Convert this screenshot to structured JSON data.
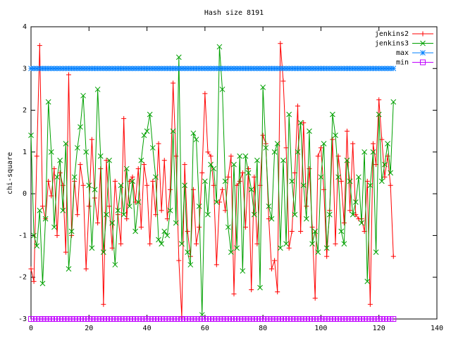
{
  "chart_data": {
    "type": "line",
    "title": "Hash size 8191",
    "y_label": "chi-square",
    "x": [
      0,
      1,
      2,
      3,
      4,
      5,
      6,
      7,
      8,
      9,
      10,
      11,
      12,
      13,
      14,
      15,
      16,
      17,
      18,
      19,
      20,
      21,
      22,
      23,
      24,
      25,
      26,
      27,
      28,
      29,
      30,
      31,
      32,
      33,
      34,
      35,
      36,
      37,
      38,
      39,
      40,
      41,
      42,
      43,
      44,
      45,
      46,
      47,
      48,
      49,
      50,
      51,
      52,
      53,
      54,
      55,
      56,
      57,
      58,
      59,
      60,
      61,
      62,
      63,
      64,
      65,
      66,
      67,
      68,
      69,
      70,
      71,
      72,
      73,
      74,
      75,
      76,
      77,
      78,
      79,
      80,
      81,
      82,
      83,
      84,
      85,
      86,
      87,
      88,
      89,
      90,
      91,
      92,
      93,
      94,
      95,
      96,
      97,
      98,
      99,
      100,
      101,
      102,
      103,
      104,
      105,
      106,
      107,
      108,
      109,
      110,
      111,
      112,
      113,
      114,
      115,
      116,
      117,
      118,
      119,
      120,
      121,
      122,
      123,
      124,
      125
    ],
    "series": [
      {
        "name": "jenkins2",
        "color": "#ff0000",
        "values": [
          -1.8,
          -2.1,
          0.9,
          3.55,
          -0.3,
          -0.6,
          0.3,
          -0.05,
          0.6,
          -1.0,
          0.5,
          0.2,
          -1.4,
          2.85,
          -1.0,
          0.3,
          -0.5,
          0.7,
          0.2,
          -1.8,
          -0.3,
          1.3,
          -0.1,
          -0.7,
          0.6,
          -2.65,
          0.8,
          -0.3,
          -1.3,
          0.3,
          -0.5,
          -1.2,
          1.8,
          -0.6,
          0.3,
          0.4,
          -0.2,
          0.6,
          -0.8,
          0.7,
          0.2,
          -1.2,
          0.3,
          -0.5,
          1.2,
          -0.4,
          0.8,
          -0.6,
          0.1,
          2.65,
          0.9,
          -1.6,
          -2.95,
          0.7,
          -0.9,
          -1.5,
          0.1,
          -1.2,
          -0.8,
          0.5,
          2.4,
          1.0,
          0.9,
          0.2,
          -1.7,
          -0.2,
          0.1,
          -0.4,
          0.4,
          0.9,
          -2.4,
          0.2,
          0.3,
          0.5,
          -0.8,
          0.6,
          -2.3,
          0.4,
          -1.2,
          0.2,
          1.4,
          1.2,
          -0.6,
          -1.8,
          -1.6,
          -2.35,
          3.6,
          2.7,
          1.1,
          -1.3,
          -0.9,
          0.5,
          2.1,
          -0.9,
          1.7,
          -0.3,
          0.6,
          -0.8,
          -2.5,
          0.9,
          1.1,
          0.1,
          -1.5,
          -0.4,
          1.3,
          -1.2,
          0.9,
          0.3,
          -0.7,
          1.5,
          -0.4,
          1.2,
          -0.5,
          -0.6,
          -0.6,
          -0.9,
          0.3,
          -2.65,
          1.2,
          0.7,
          2.25,
          1.3,
          0.4,
          0.9,
          0.2,
          -1.5
        ]
      },
      {
        "name": "jenkins3",
        "color": "#00a000",
        "values": [
          1.4,
          -1.0,
          -1.25,
          -0.4,
          -2.15,
          -0.6,
          2.2,
          1.0,
          -0.8,
          0.4,
          0.8,
          -0.4,
          1.2,
          -1.8,
          -0.9,
          0.4,
          1.1,
          1.6,
          2.35,
          1.0,
          0.2,
          -1.3,
          0.1,
          2.5,
          0.9,
          -1.4,
          -0.5,
          0.8,
          -0.7,
          -1.7,
          -0.4,
          0.2,
          -0.5,
          0.6,
          -0.3,
          0.3,
          -0.9,
          -0.2,
          0.8,
          1.4,
          1.5,
          1.9,
          1.1,
          0.4,
          -1.1,
          -1.2,
          -0.9,
          -1.0,
          -0.4,
          1.5,
          -0.7,
          3.27,
          -1.2,
          0.2,
          -1.4,
          -1.7,
          1.45,
          1.3,
          -0.3,
          -2.9,
          0.3,
          -0.5,
          0.7,
          0.6,
          -0.2,
          3.52,
          2.5,
          0.3,
          -0.8,
          -1.4,
          0.7,
          -1.3,
          0.9,
          -1.85,
          0.9,
          0.5,
          0.1,
          -0.5,
          0.8,
          -2.25,
          2.55,
          1.1,
          -0.3,
          -0.6,
          1.0,
          1.2,
          -1.3,
          0.8,
          -1.2,
          1.9,
          0.3,
          -0.5,
          1.0,
          1.7,
          0.2,
          -0.6,
          1.5,
          -1.2,
          -0.9,
          -1.4,
          0.4,
          1.2,
          -1.3,
          -0.5,
          1.9,
          1.4,
          0.4,
          -0.9,
          -1.2,
          0.8,
          0.3,
          -0.5,
          -0.2,
          0.4,
          -0.7,
          1.0,
          -2.1,
          0.2,
          1.0,
          -1.4,
          1.9,
          0.3,
          0.7,
          1.2,
          0.5,
          2.2
        ]
      },
      {
        "name": "max",
        "color": "#0080ff",
        "values": [
          3,
          3,
          3,
          3,
          3,
          3,
          3,
          3,
          3,
          3,
          3,
          3,
          3,
          3,
          3,
          3,
          3,
          3,
          3,
          3,
          3,
          3,
          3,
          3,
          3,
          3,
          3,
          3,
          3,
          3,
          3,
          3,
          3,
          3,
          3,
          3,
          3,
          3,
          3,
          3,
          3,
          3,
          3,
          3,
          3,
          3,
          3,
          3,
          3,
          3,
          3,
          3,
          3,
          3,
          3,
          3,
          3,
          3,
          3,
          3,
          3,
          3,
          3,
          3,
          3,
          3,
          3,
          3,
          3,
          3,
          3,
          3,
          3,
          3,
          3,
          3,
          3,
          3,
          3,
          3,
          3,
          3,
          3,
          3,
          3,
          3,
          3,
          3,
          3,
          3,
          3,
          3,
          3,
          3,
          3,
          3,
          3,
          3,
          3,
          3,
          3,
          3,
          3,
          3,
          3,
          3,
          3,
          3,
          3,
          3,
          3,
          3,
          3,
          3,
          3,
          3,
          3,
          3,
          3,
          3,
          3,
          3,
          3,
          3,
          3,
          3
        ]
      },
      {
        "name": "min",
        "color": "#c000ff",
        "values": [
          -3,
          -3,
          -3,
          -3,
          -3,
          -3,
          -3,
          -3,
          -3,
          -3,
          -3,
          -3,
          -3,
          -3,
          -3,
          -3,
          -3,
          -3,
          -3,
          -3,
          -3,
          -3,
          -3,
          -3,
          -3,
          -3,
          -3,
          -3,
          -3,
          -3,
          -3,
          -3,
          -3,
          -3,
          -3,
          -3,
          -3,
          -3,
          -3,
          -3,
          -3,
          -3,
          -3,
          -3,
          -3,
          -3,
          -3,
          -3,
          -3,
          -3,
          -3,
          -3,
          -3,
          -3,
          -3,
          -3,
          -3,
          -3,
          -3,
          -3,
          -3,
          -3,
          -3,
          -3,
          -3,
          -3,
          -3,
          -3,
          -3,
          -3,
          -3,
          -3,
          -3,
          -3,
          -3,
          -3,
          -3,
          -3,
          -3,
          -3,
          -3,
          -3,
          -3,
          -3,
          -3,
          -3,
          -3,
          -3,
          -3,
          -3,
          -3,
          -3,
          -3,
          -3,
          -3,
          -3,
          -3,
          -3,
          -3,
          -3,
          -3,
          -3,
          -3,
          -3,
          -3,
          -3,
          -3,
          -3,
          -3,
          -3,
          -3,
          -3,
          -3,
          -3,
          -3,
          -3,
          -3,
          -3,
          -3,
          -3,
          -3,
          -3,
          -3,
          -3,
          -3,
          -3
        ]
      }
    ],
    "xlim": [
      0,
      140
    ],
    "ylim": [
      -3,
      4
    ],
    "xticks": [
      0,
      20,
      40,
      60,
      80,
      100,
      120,
      140
    ],
    "yticks": [
      -3,
      -2,
      -1,
      0,
      1,
      2,
      3,
      4
    ],
    "grid": false,
    "legend": "top-right"
  }
}
